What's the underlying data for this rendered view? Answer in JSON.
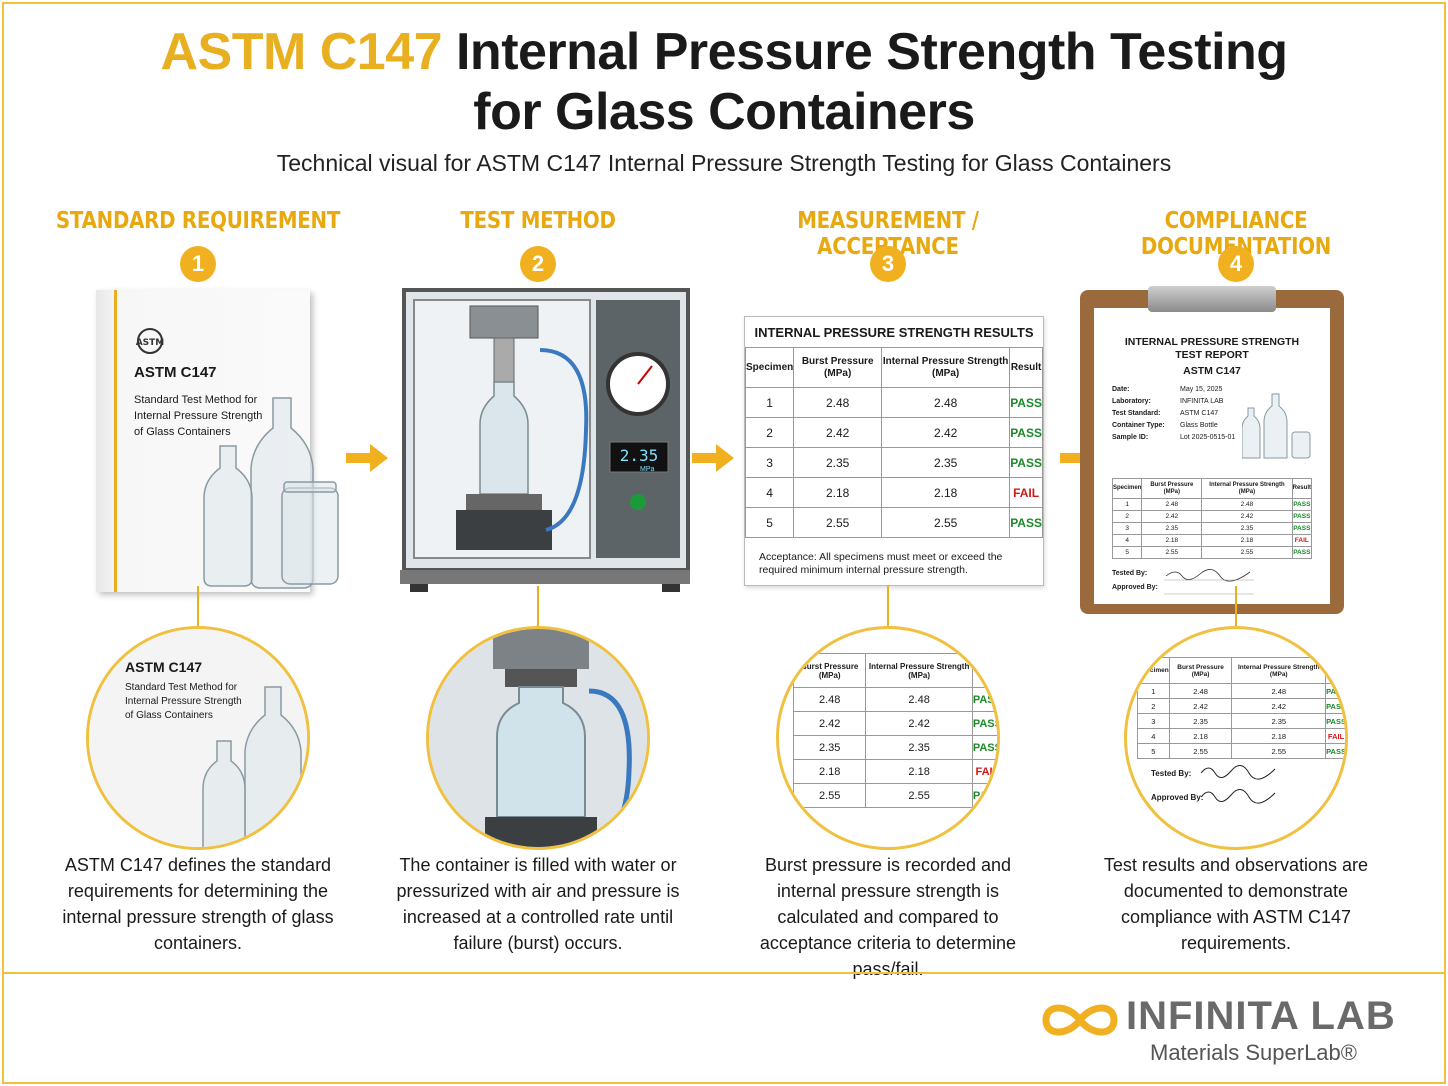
{
  "header": {
    "title_accent": "ASTM C147",
    "title_rest_line1": "Internal Pressure Strength Testing",
    "title_line2": "for Glass Containers",
    "subtitle": "Technical visual for ASTM C147 Internal Pressure Strength Testing for Glass Containers"
  },
  "steps": [
    {
      "label": "STANDARD REQUIREMENT",
      "number": "1",
      "description": "ASTM C147 defines the standard requirements for determining the internal pressure strength of glass containers."
    },
    {
      "label": "TEST METHOD",
      "number": "2",
      "description": "The container is filled with water or pressurized with air and pressure is increased at a controlled rate until failure (burst) occurs."
    },
    {
      "label": "MEASUREMENT / ACCEPTANCE",
      "number": "3",
      "description": "Burst pressure is recorded and internal pressure strength is calculated and compared to acceptance criteria to determine pass/fail."
    },
    {
      "label": "COMPLIANCE DOCUMENTATION",
      "number": "4",
      "description": "Test results and observations are documented to demonstrate compliance with ASTM C147 requirements."
    }
  ],
  "book": {
    "title": "ASTM C147",
    "line1": "Standard Test Method for",
    "line2": "Internal Pressure Strength",
    "line3": "of Glass Containers"
  },
  "machine": {
    "display_value": "2.35",
    "display_unit": "MPa"
  },
  "results": {
    "title": "INTERNAL PRESSURE STRENGTH RESULTS",
    "col_specimen": "Specimen",
    "col_burst": "Burst Pressure (MPa)",
    "col_strength": "Internal Pressure Strength (MPa)",
    "col_result": "Result",
    "rows": [
      {
        "specimen": "1",
        "burst": "2.48",
        "strength": "2.48",
        "result": "PASS"
      },
      {
        "specimen": "2",
        "burst": "2.42",
        "strength": "2.42",
        "result": "PASS"
      },
      {
        "specimen": "3",
        "burst": "2.35",
        "strength": "2.35",
        "result": "PASS"
      },
      {
        "specimen": "4",
        "burst": "2.18",
        "strength": "2.18",
        "result": "FAIL"
      },
      {
        "specimen": "5",
        "burst": "2.55",
        "strength": "2.55",
        "result": "PASS"
      }
    ],
    "acceptance": "Acceptance: All specimens must meet or exceed the required minimum internal pressure strength."
  },
  "report": {
    "title_line1": "INTERNAL PRESSURE STRENGTH",
    "title_line2": "TEST REPORT",
    "title_line3": "ASTM C147",
    "meta": [
      {
        "key": "Date:",
        "value": "May 15, 2025"
      },
      {
        "key": "Laboratory:",
        "value": "INFINITA LAB"
      },
      {
        "key": "Test Standard:",
        "value": "ASTM C147"
      },
      {
        "key": "Container Type:",
        "value": "Glass Bottle"
      },
      {
        "key": "Sample ID:",
        "value": "Lot 2025-0515-01"
      }
    ],
    "tested_by": "Tested By:",
    "approved_by": "Approved By:"
  },
  "logo": {
    "name": "INFINITA LAB",
    "tagline": "Materials SuperLab®"
  },
  "colors": {
    "accent": "#e8b020",
    "pass": "#1b8a2a",
    "fail": "#d01818"
  }
}
